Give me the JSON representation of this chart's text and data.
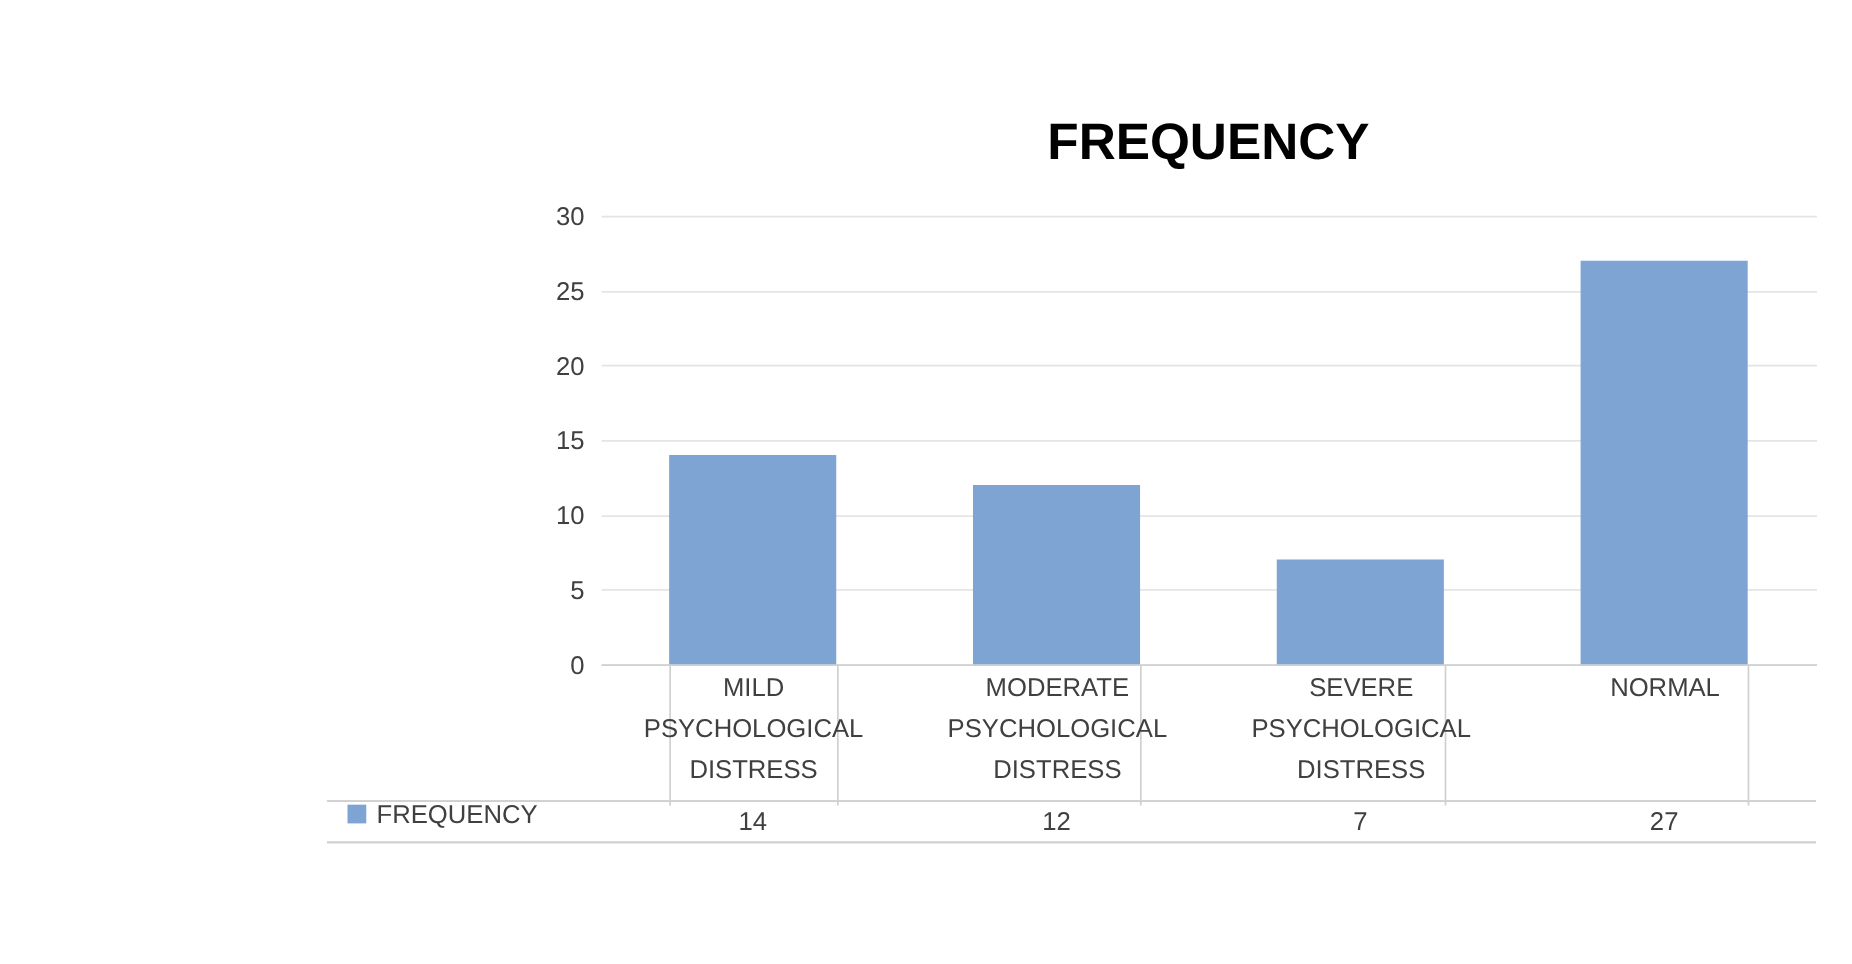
{
  "chart_data": {
    "type": "bar",
    "title": "FREQUENCY",
    "categories": [
      "MILD PSYCHOLOGICAL DISTRESS",
      "MODERATE PSYCHOLOGICAL DISTRESS",
      "SEVERE PSYCHOLOGICAL DISTRESS",
      "NORMAL"
    ],
    "series": [
      {
        "name": "FREQUENCY",
        "color": "#7da4d2",
        "values": [
          14,
          12,
          7,
          27
        ]
      }
    ],
    "ylim": [
      0,
      30
    ],
    "yticks": [
      0,
      5,
      10,
      15,
      20,
      25,
      30
    ],
    "grid": "y",
    "legend": "bottom",
    "data_labels": true
  }
}
